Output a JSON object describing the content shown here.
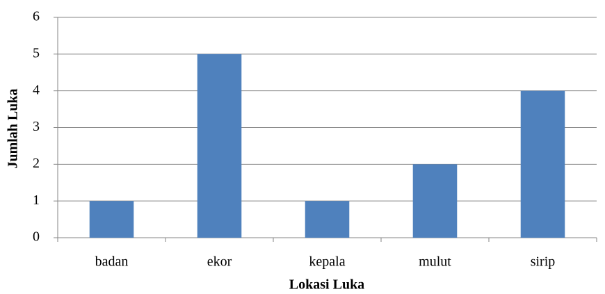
{
  "chart_data": {
    "type": "bar",
    "x_label": "Lokasi Luka",
    "y_label": "Jumlah Luka",
    "categories": [
      "badan",
      "ekor",
      "kepala",
      "mulut",
      "sirip"
    ],
    "values": [
      1,
      5,
      1,
      2,
      4
    ],
    "color": "#4f81bd",
    "ylim": [
      0,
      6
    ],
    "yticks": [
      0,
      1,
      2,
      3,
      4,
      5,
      6
    ],
    "grid": true
  }
}
